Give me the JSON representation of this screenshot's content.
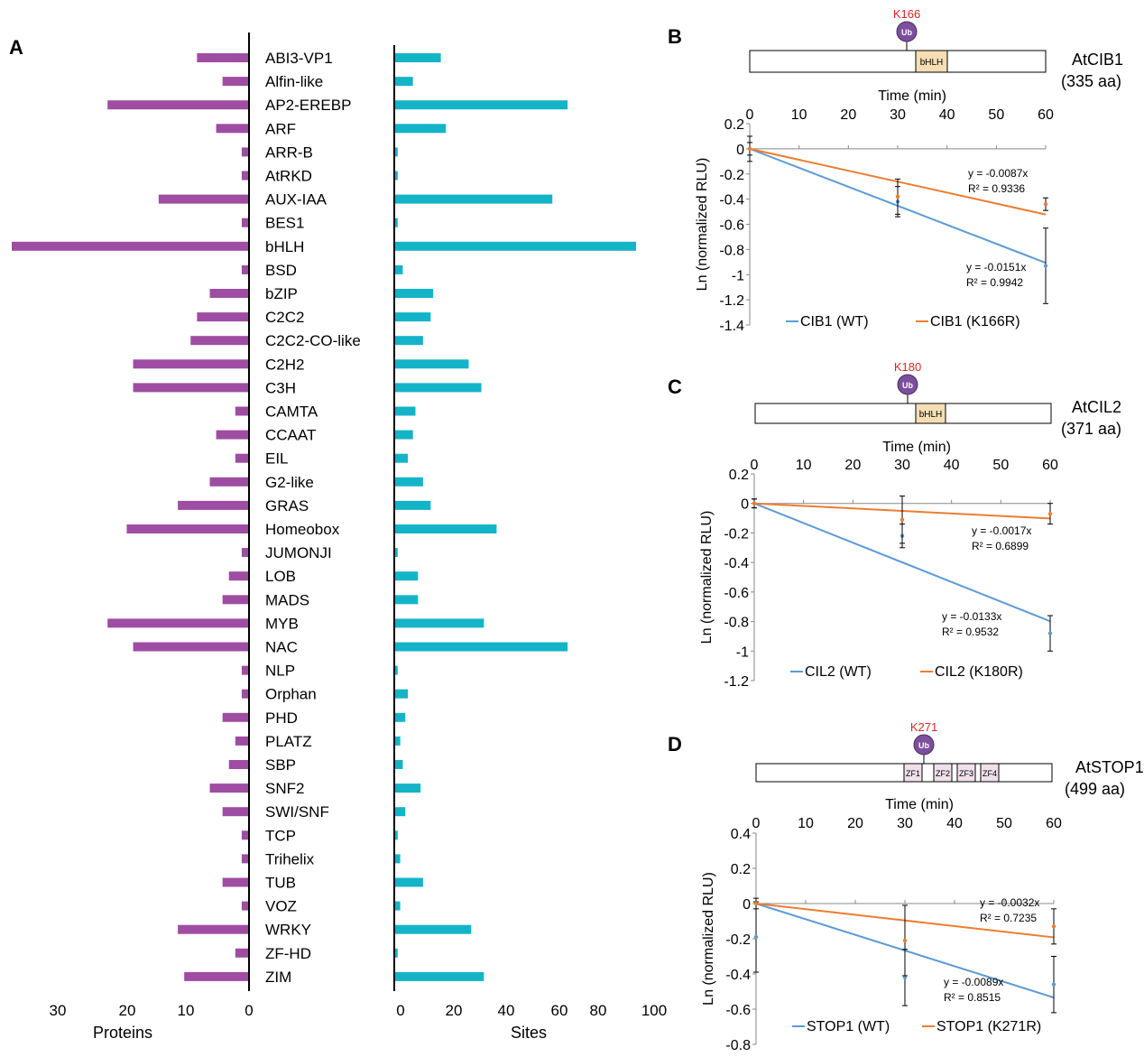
{
  "chart_data": [
    {
      "panel": "A",
      "type": "bar",
      "orientation": "horizontal",
      "categories": [
        "ABI3-VP1",
        "Alfin-like",
        "AP2-EREBP",
        "ARF",
        "ARR-B",
        "AtRKD",
        "AUX-IAA",
        "BES1",
        "bHLH",
        "BSD",
        "bZIP",
        "C2C2",
        "C2C2-CO-like",
        "C2H2",
        "C3H",
        "CAMTA",
        "CCAAT",
        "EIL",
        "G2-like",
        "GRAS",
        "Homeobox",
        "JUMONJI",
        "LOB",
        "MADS",
        "MYB",
        "NAC",
        "NLP",
        "Orphan",
        "PHD",
        "PLATZ",
        "SBP",
        "SNF2",
        "SWI/SNF",
        "TCP",
        "Trihelix",
        "TUB",
        "VOZ",
        "WRKY",
        "ZF-HD",
        "ZIM"
      ],
      "series": [
        {
          "name": "Proteins",
          "color": "#9e4da3",
          "values": [
            8,
            4,
            22,
            5,
            1,
            1,
            14,
            1,
            37,
            1,
            6,
            8,
            9,
            18,
            18,
            2,
            5,
            2,
            6,
            11,
            19,
            1,
            3,
            4,
            22,
            18,
            1,
            1,
            4,
            2,
            3,
            6,
            4,
            1,
            1,
            4,
            1,
            11,
            2,
            10
          ]
        },
        {
          "name": "Sites",
          "color": "#14b4c8",
          "values": [
            18,
            7,
            68,
            20,
            1,
            1,
            62,
            1,
            95,
            3,
            15,
            14,
            11,
            29,
            34,
            8,
            7,
            5,
            11,
            14,
            40,
            1,
            9,
            9,
            35,
            68,
            1,
            5,
            4,
            2,
            3,
            10,
            4,
            1,
            2,
            11,
            2,
            30,
            1,
            35
          ]
        }
      ],
      "proteins_axis": {
        "label": "Proteins",
        "ticks": [
          "30",
          "20",
          "10",
          "0"
        ],
        "range": [
          0,
          37
        ]
      },
      "sites_axis": {
        "label": "Sites",
        "ticks": [
          "0",
          "20",
          "40",
          "60",
          "80",
          "100"
        ],
        "range": [
          0,
          100
        ]
      }
    },
    {
      "panel": "B",
      "type": "line",
      "protein": "AtCIB1",
      "length": "(335 aa)",
      "site": "K166",
      "domains": [
        "bHLH"
      ],
      "ub_label": "Ub",
      "xlabel": "Time (min)",
      "ylabel": "Ln (normalized RLU)",
      "xticks": [
        "0",
        "10",
        "20",
        "30",
        "40",
        "50",
        "60"
      ],
      "yticks": [
        "0.2",
        "0",
        "-0.2",
        "-0.4",
        "-0.6",
        "-0.8",
        "-1",
        "-1.2",
        "-1.4"
      ],
      "xlim": [
        0,
        60
      ],
      "ylim": [
        -1.4,
        0.2
      ],
      "series": [
        {
          "name": "CIB1 (WT)",
          "color": "#5b9bd5",
          "slope": -0.0151,
          "x": [
            0,
            30,
            60
          ],
          "y": [
            0,
            -0.42,
            -0.93
          ],
          "err": [
            0.1,
            0.12,
            0.3
          ],
          "equation": "y = -0.0151x",
          "r2": "R² = 0.9942"
        },
        {
          "name": "CIB1 (K166R)",
          "color": "#ed7d31",
          "slope": -0.0087,
          "x": [
            0,
            30,
            60
          ],
          "y": [
            0,
            -0.38,
            -0.44
          ],
          "err": [
            0.05,
            0.14,
            0.05
          ],
          "equation": "y = -0.0087x",
          "r2": "R² = 0.9336"
        }
      ]
    },
    {
      "panel": "C",
      "type": "line",
      "protein": "AtCIL2",
      "length": "(371 aa)",
      "site": "K180",
      "domains": [
        "bHLH"
      ],
      "ub_label": "Ub",
      "xlabel": "Time (min)",
      "ylabel": "Ln (normalized RLU)",
      "xticks": [
        "0",
        "10",
        "20",
        "30",
        "40",
        "50",
        "60"
      ],
      "yticks": [
        "0.2",
        "0",
        "-0.2",
        "-0.4",
        "-0.6",
        "-0.8",
        "-1",
        "-1.2"
      ],
      "xlim": [
        0,
        60
      ],
      "ylim": [
        -1.2,
        0.2
      ],
      "series": [
        {
          "name": "CIL2 (WT)",
          "color": "#5b9bd5",
          "slope": -0.0133,
          "x": [
            0,
            30,
            60
          ],
          "y": [
            0,
            -0.22,
            -0.88
          ],
          "err": [
            0.03,
            0.08,
            0.12
          ],
          "equation": "y = -0.0133x",
          "r2": "R² = 0.9532"
        },
        {
          "name": "CIL2 (K180R)",
          "color": "#ed7d31",
          "slope": -0.0017,
          "x": [
            0,
            30,
            60
          ],
          "y": [
            0,
            -0.11,
            -0.07
          ],
          "err": [
            0.03,
            0.16,
            0.07
          ],
          "equation": "y = -0.0017x",
          "r2": "R² = 0.6899"
        }
      ]
    },
    {
      "panel": "D",
      "type": "line",
      "protein": "AtSTOP1",
      "length": "(499 aa)",
      "site": "K271",
      "domains": [
        "ZF1",
        "ZF2",
        "ZF3",
        "ZF4"
      ],
      "ub_label": "Ub",
      "xlabel": "Time (min)",
      "ylabel": "Ln (normalized RLU)",
      "xticks": [
        "0",
        "10",
        "20",
        "30",
        "40",
        "50",
        "60"
      ],
      "yticks": [
        "0.4",
        "0.2",
        "0",
        "-0.2",
        "-0.4",
        "-0.6",
        "-0.8"
      ],
      "xlim": [
        0,
        60
      ],
      "ylim": [
        -0.8,
        0.4
      ],
      "series": [
        {
          "name": "STOP1 (WT)",
          "color": "#5b9bd5",
          "slope": -0.0089,
          "x": [
            0,
            30,
            60
          ],
          "y": [
            -0.19,
            -0.42,
            -0.46
          ],
          "err": [
            0.2,
            0.16,
            0.16
          ],
          "equation": "y = -0.0089x",
          "r2": "R² = 0.8515"
        },
        {
          "name": "STOP1 (K271R)",
          "color": "#ed7d31",
          "slope": -0.0032,
          "x": [
            0,
            30,
            60
          ],
          "y": [
            0,
            -0.21,
            -0.13
          ],
          "err": [
            0.03,
            0.2,
            0.1
          ],
          "equation": "y = -0.0032x",
          "r2": "R² = 0.7235"
        }
      ]
    }
  ]
}
